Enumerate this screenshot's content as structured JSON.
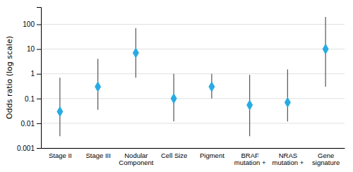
{
  "chart_data": {
    "type": "errorbar",
    "categories": [
      "Stage II",
      "Stage III",
      "Nodular\nComponent",
      "Cell Size",
      "Pigment",
      "BRAF\nmutation +",
      "NRAS\nmutation +",
      "Gene\nsignature"
    ],
    "values": [
      0.03,
      0.3,
      7.0,
      0.1,
      0.3,
      0.055,
      0.07,
      10.0
    ],
    "ci_low": [
      0.003,
      0.035,
      0.7,
      0.012,
      0.1,
      0.003,
      0.012,
      0.3
    ],
    "ci_high": [
      0.7,
      4.0,
      70.0,
      1.0,
      1.0,
      0.9,
      1.5,
      200.0
    ],
    "color": "#29ABE2",
    "marker": "diamond",
    "ylabel": "Odds ratio (log scale)",
    "log": "y",
    "ylim": [
      0.001,
      500
    ],
    "yticks": [
      0.001,
      0.01,
      0.1,
      1,
      10,
      100
    ],
    "grid": true
  }
}
